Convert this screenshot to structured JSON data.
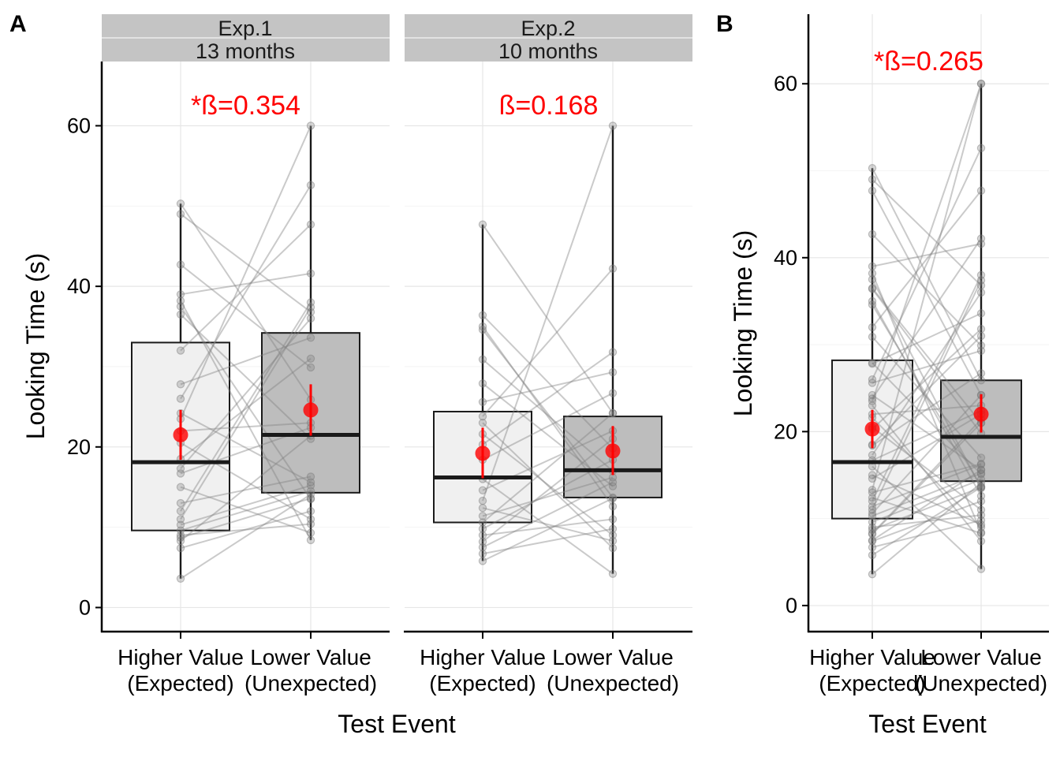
{
  "figure": {
    "panel_a_tag": "A",
    "panel_b_tag": "B",
    "y_axis_label": "Looking Time (s)",
    "x_axis_label": "Test Event"
  },
  "chart_data": [
    {
      "type": "box",
      "panel": "A",
      "facet_label": [
        "Exp.1",
        "13 months"
      ],
      "annotation": "*ß=0.354",
      "ylabel": "Looking Time (s)",
      "xlabel": "Test Event",
      "ylim": [
        -3,
        68
      ],
      "yticks": [
        0,
        20,
        40,
        60
      ],
      "grid": true,
      "categories": [
        "Higher Value\n(Expected)",
        "Lower Value\n(Unexpected)"
      ],
      "boxes": [
        {
          "q1": 9.6,
          "median": 18.1,
          "q3": 33.0,
          "whisker_low": 3.6,
          "whisker_high": 50.3,
          "mean": 21.5,
          "ci": [
            18.4,
            24.6
          ]
        },
        {
          "q1": 14.3,
          "median": 21.5,
          "q3": 34.2,
          "whisker_low": 8.4,
          "whisker_high": 60.0,
          "mean": 24.6,
          "ci": [
            21.4,
            27.8
          ]
        }
      ],
      "pairs": [
        [
          3.6,
          14.1
        ],
        [
          7.4,
          12.0
        ],
        [
          8.3,
          21.4
        ],
        [
          8.7,
          13.6
        ],
        [
          9.0,
          10.4
        ],
        [
          9.6,
          14.5
        ],
        [
          10.3,
          15.2
        ],
        [
          11.0,
          37.4
        ],
        [
          13.0,
          16.3
        ],
        [
          15.0,
          9.3
        ],
        [
          16.7,
          22.4
        ],
        [
          18.5,
          31.0
        ],
        [
          22.0,
          23.0
        ],
        [
          24.2,
          15.6
        ],
        [
          27.8,
          33.6
        ],
        [
          32.0,
          47.7
        ],
        [
          37.5,
          13.5
        ],
        [
          38.2,
          8.4
        ],
        [
          39.0,
          41.6
        ],
        [
          42.7,
          29.9
        ],
        [
          49.0,
          36.8
        ],
        [
          50.3,
          25.9
        ],
        [
          23.5,
          60.0
        ],
        [
          26.0,
          52.6
        ],
        [
          17.3,
          36.0
        ],
        [
          12.0,
          38.0
        ],
        [
          20.5,
          11.0
        ],
        [
          36.5,
          21.0
        ]
      ]
    },
    {
      "type": "box",
      "panel": "A",
      "facet_label": [
        "Exp.2",
        "10 months"
      ],
      "annotation": "ß=0.168",
      "ylabel": "Looking Time (s)",
      "xlabel": "Test Event",
      "ylim": [
        -3,
        68
      ],
      "yticks": [
        0,
        20,
        40,
        60
      ],
      "grid": true,
      "categories": [
        "Higher Value\n(Expected)",
        "Lower Value\n(Unexpected)"
      ],
      "boxes": [
        {
          "q1": 10.6,
          "median": 16.2,
          "q3": 24.4,
          "whisker_low": 5.8,
          "whisker_high": 47.7,
          "mean": 19.2,
          "ci": [
            16.1,
            22.4
          ]
        },
        {
          "q1": 13.7,
          "median": 17.1,
          "q3": 23.8,
          "whisker_low": 4.2,
          "whisker_high": 60.0,
          "mean": 19.5,
          "ci": [
            16.5,
            22.6
          ]
        }
      ],
      "pairs": [
        [
          5.8,
          13.6
        ],
        [
          6.7,
          9.8
        ],
        [
          7.5,
          15.6
        ],
        [
          8.2,
          21.0
        ],
        [
          9.0,
          11.0
        ],
        [
          9.8,
          18.4
        ],
        [
          10.6,
          24.2
        ],
        [
          11.4,
          16.2
        ],
        [
          12.4,
          8.3
        ],
        [
          14.6,
          22.0
        ],
        [
          16.0,
          4.2
        ],
        [
          18.4,
          26.7
        ],
        [
          20.3,
          31.8
        ],
        [
          23.0,
          7.4
        ],
        [
          25.6,
          29.3
        ],
        [
          27.9,
          15.1
        ],
        [
          30.9,
          17.0
        ],
        [
          34.6,
          13.7
        ],
        [
          36.4,
          19.8
        ],
        [
          47.7,
          24.2
        ],
        [
          23.8,
          42.2
        ],
        [
          13.3,
          60.0
        ],
        [
          35.0,
          12.6
        ],
        [
          21.6,
          9.0
        ]
      ]
    },
    {
      "type": "box",
      "panel": "B",
      "facet_label": [],
      "annotation": "*ß=0.265",
      "ylabel": "Looking Time (s)",
      "xlabel": "Test Event",
      "ylim": [
        -3,
        68
      ],
      "yticks": [
        0,
        20,
        40,
        60
      ],
      "grid": true,
      "categories": [
        "Higher Value\n(Expected)",
        "Lower Value\n(Unexpected)"
      ],
      "boxes": [
        {
          "q1": 10.0,
          "median": 16.5,
          "q3": 28.2,
          "whisker_low": 3.6,
          "whisker_high": 50.3,
          "mean": 20.3,
          "ci": [
            18.1,
            22.5
          ]
        },
        {
          "q1": 14.3,
          "median": 19.4,
          "q3": 25.9,
          "whisker_low": 4.2,
          "whisker_high": 60.0,
          "mean": 22.0,
          "ci": [
            19.9,
            24.3
          ]
        }
      ],
      "pairs": [
        [
          3.6,
          14.1
        ],
        [
          5.8,
          13.6
        ],
        [
          6.7,
          9.8
        ],
        [
          7.4,
          12.0
        ],
        [
          7.5,
          15.6
        ],
        [
          8.2,
          21.0
        ],
        [
          8.3,
          21.4
        ],
        [
          8.7,
          13.6
        ],
        [
          9.0,
          10.4
        ],
        [
          9.6,
          14.5
        ],
        [
          10.3,
          15.2
        ],
        [
          10.6,
          24.2
        ],
        [
          11.0,
          37.4
        ],
        [
          11.4,
          16.2
        ],
        [
          12.4,
          8.3
        ],
        [
          13.0,
          16.3
        ],
        [
          14.6,
          22.0
        ],
        [
          15.0,
          9.3
        ],
        [
          16.0,
          4.2
        ],
        [
          16.7,
          22.4
        ],
        [
          18.4,
          26.7
        ],
        [
          18.5,
          31.0
        ],
        [
          20.3,
          31.8
        ],
        [
          22.0,
          23.0
        ],
        [
          23.0,
          7.4
        ],
        [
          24.2,
          15.6
        ],
        [
          25.6,
          29.3
        ],
        [
          27.8,
          33.6
        ],
        [
          27.9,
          15.1
        ],
        [
          30.9,
          17.0
        ],
        [
          32.0,
          47.7
        ],
        [
          34.6,
          13.7
        ],
        [
          36.4,
          19.8
        ],
        [
          37.5,
          13.5
        ],
        [
          38.2,
          8.4
        ],
        [
          39.0,
          41.6
        ],
        [
          42.7,
          29.9
        ],
        [
          47.7,
          24.2
        ],
        [
          49.0,
          36.8
        ],
        [
          50.3,
          25.9
        ],
        [
          23.5,
          60.0
        ],
        [
          26.0,
          52.6
        ],
        [
          13.3,
          60.0
        ],
        [
          23.8,
          42.2
        ],
        [
          17.3,
          36.0
        ],
        [
          12.0,
          38.0
        ],
        [
          35.0,
          12.6
        ],
        [
          21.6,
          9.0
        ],
        [
          20.5,
          11.0
        ],
        [
          36.5,
          21.0
        ]
      ]
    }
  ]
}
